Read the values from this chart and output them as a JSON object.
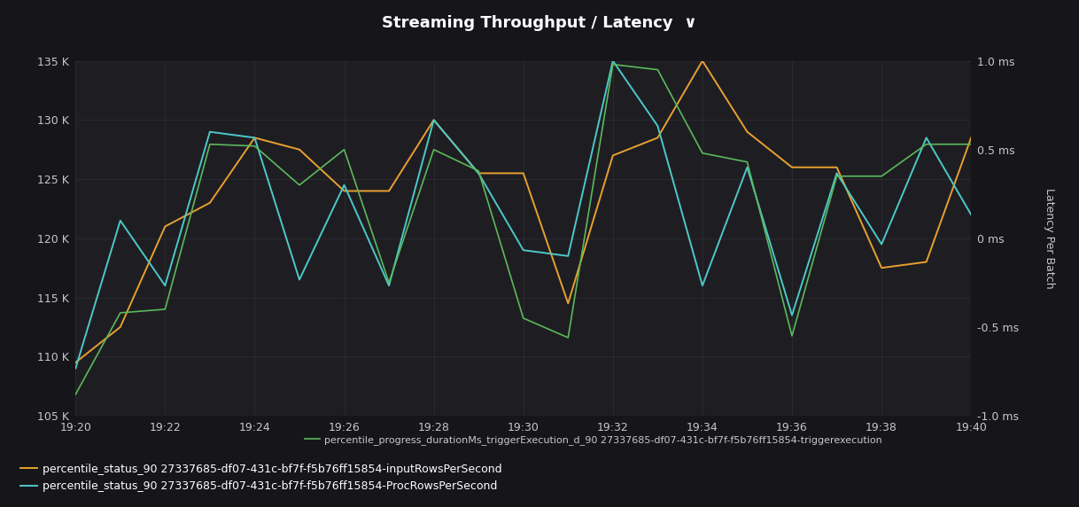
{
  "title": "Streaming Throughput / Latency  ∨",
  "bg_color": "#16161a",
  "plot_bg_color": "#1e1e22",
  "grid_color": "#333338",
  "text_color": "#c8c8cc",
  "ylabel_right": "Latency Per Batch",
  "ylim_left": [
    105000,
    135000
  ],
  "ylim_right": [
    -1.0,
    1.0
  ],
  "yticks_left": [
    105000,
    110000,
    115000,
    120000,
    125000,
    130000,
    135000
  ],
  "ytick_labels_left": [
    "105 K",
    "110 K",
    "115 K",
    "120 K",
    "125 K",
    "130 K",
    "135 K"
  ],
  "yticks_right": [
    -1.0,
    -0.5,
    0.0,
    0.5,
    1.0
  ],
  "ytick_labels_right": [
    "-1.0 ms",
    "-0.5 ms",
    "0 ms",
    "0.5 ms",
    "1.0 ms"
  ],
  "x_labels": [
    "19:20",
    "19:22",
    "19:24",
    "19:26",
    "19:28",
    "19:30",
    "19:32",
    "19:34",
    "19:36",
    "19:38",
    "19:40"
  ],
  "x_positions": [
    0,
    2,
    4,
    6,
    8,
    10,
    12,
    14,
    16,
    18,
    20
  ],
  "orange_line": {
    "label": "percentile_status_90 27337685-df07-431c-bf7f-f5b76ff15854-inputRowsPerSecond",
    "color": "#e8a030",
    "x": [
      0,
      1,
      2,
      3,
      4,
      5,
      6,
      7,
      8,
      9,
      10,
      11,
      12,
      13,
      14,
      15,
      16,
      17,
      18,
      19,
      20
    ],
    "y": [
      109500,
      112500,
      121000,
      123000,
      128500,
      127500,
      124000,
      124000,
      130000,
      125500,
      125500,
      114500,
      127000,
      128500,
      135000,
      129000,
      126000,
      126000,
      117500,
      118000,
      128500
    ]
  },
  "cyan_line": {
    "label": "percentile_status_90 27337685-df07-431c-bf7f-f5b76ff15854-ProcRowsPerSecond",
    "color": "#4dc8c8",
    "x": [
      0,
      1,
      2,
      3,
      4,
      5,
      6,
      7,
      8,
      9,
      10,
      11,
      12,
      13,
      14,
      15,
      16,
      17,
      18,
      19,
      20
    ],
    "y": [
      109000,
      121500,
      116000,
      129000,
      128500,
      116500,
      124500,
      116000,
      130000,
      125500,
      119000,
      118500,
      135000,
      129500,
      116000,
      126000,
      113500,
      125500,
      119500,
      128500,
      122000
    ]
  },
  "green_line": {
    "label": "percentile_progress_durationMs_triggerExecution_d_90 27337685-df07-431c-bf7f-f5b76ff15854-triggerexecution",
    "color": "#5cb85c",
    "x": [
      0,
      1,
      2,
      3,
      4,
      5,
      6,
      7,
      8,
      9,
      10,
      11,
      12,
      13,
      14,
      15,
      16,
      17,
      18,
      19,
      20
    ],
    "y": [
      -0.88,
      -0.42,
      -0.4,
      0.53,
      0.52,
      0.3,
      0.5,
      -0.25,
      0.5,
      0.38,
      -0.45,
      -0.56,
      0.98,
      0.95,
      0.48,
      0.43,
      -0.55,
      0.35,
      0.35,
      0.53,
      0.53
    ]
  }
}
